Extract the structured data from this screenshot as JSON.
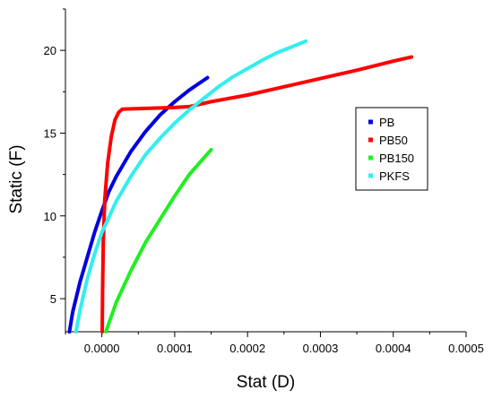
{
  "chart_data": {
    "type": "line",
    "xlabel": "Stat (D)",
    "ylabel": "Static (F)",
    "xlim": [
      -5e-05,
      0.0005
    ],
    "ylim": [
      3,
      22.5
    ],
    "x_ticks": [
      0.0,
      0.0001,
      0.0002,
      0.0003,
      0.0004,
      0.0005
    ],
    "x_tick_labels": [
      "0.0000",
      "0.0001",
      "0.0002",
      "0.0003",
      "0.0004",
      "0.0005"
    ],
    "y_ticks": [
      5,
      10,
      15,
      20
    ],
    "y_tick_labels": [
      "5",
      "10",
      "15",
      "20"
    ],
    "grid": false,
    "legend_position": "right",
    "series": [
      {
        "name": "PB",
        "color": "#0000dd",
        "points": [
          [
            -4.45e-05,
            3
          ],
          [
            -4e-05,
            4.2
          ],
          [
            -3e-05,
            6.0
          ],
          [
            -2e-05,
            7.5
          ],
          [
            -1e-05,
            9.0
          ],
          [
            0.0,
            10.3
          ],
          [
            1e-05,
            11.5
          ],
          [
            2e-05,
            12.4
          ],
          [
            4e-05,
            13.9
          ],
          [
            6e-05,
            15.1
          ],
          [
            8e-05,
            16.1
          ],
          [
            0.0001,
            16.9
          ],
          [
            0.00012,
            17.6
          ],
          [
            0.000145,
            18.35
          ]
        ]
      },
      {
        "name": "PB50",
        "color": "#ff0000",
        "points": [
          [
            5e-07,
            3
          ],
          [
            1e-06,
            5.5
          ],
          [
            2e-06,
            8.5
          ],
          [
            4e-06,
            11.0
          ],
          [
            8e-06,
            13.2
          ],
          [
            1.3e-05,
            14.8
          ],
          [
            1.8e-05,
            15.8
          ],
          [
            2.3e-05,
            16.25
          ],
          [
            2.8e-05,
            16.45
          ],
          [
            5e-05,
            16.48
          ],
          [
            0.0001,
            16.55
          ],
          [
            0.00012,
            16.6
          ],
          [
            0.00015,
            16.9
          ],
          [
            0.0002,
            17.3
          ],
          [
            0.00025,
            17.8
          ],
          [
            0.0003,
            18.3
          ],
          [
            0.00035,
            18.8
          ],
          [
            0.0004,
            19.35
          ],
          [
            0.000425,
            19.6
          ]
        ]
      },
      {
        "name": "PB150",
        "color": "#22ee22",
        "points": [
          [
            5.5e-06,
            3
          ],
          [
            2e-05,
            4.8
          ],
          [
            4e-05,
            6.7
          ],
          [
            6e-05,
            8.4
          ],
          [
            8e-05,
            9.8
          ],
          [
            0.0001,
            11.2
          ],
          [
            0.00012,
            12.5
          ],
          [
            0.00015,
            14.0
          ]
        ]
      },
      {
        "name": "PKFS",
        "color": "#33eeee",
        "points": [
          [
            -3.55e-05,
            3
          ],
          [
            -3e-05,
            4.3
          ],
          [
            -2e-05,
            6.2
          ],
          [
            -1e-05,
            7.7
          ],
          [
            0.0,
            9.0
          ],
          [
            2e-05,
            10.9
          ],
          [
            4e-05,
            12.4
          ],
          [
            6e-05,
            13.7
          ],
          [
            8e-05,
            14.7
          ],
          [
            0.0001,
            15.6
          ],
          [
            0.00012,
            16.4
          ],
          [
            0.00014,
            17.1
          ],
          [
            0.00016,
            17.8
          ],
          [
            0.00018,
            18.4
          ],
          [
            0.0002,
            18.9
          ],
          [
            0.00022,
            19.4
          ],
          [
            0.00024,
            19.85
          ],
          [
            0.00026,
            20.2
          ],
          [
            0.00028,
            20.55
          ]
        ]
      }
    ]
  }
}
